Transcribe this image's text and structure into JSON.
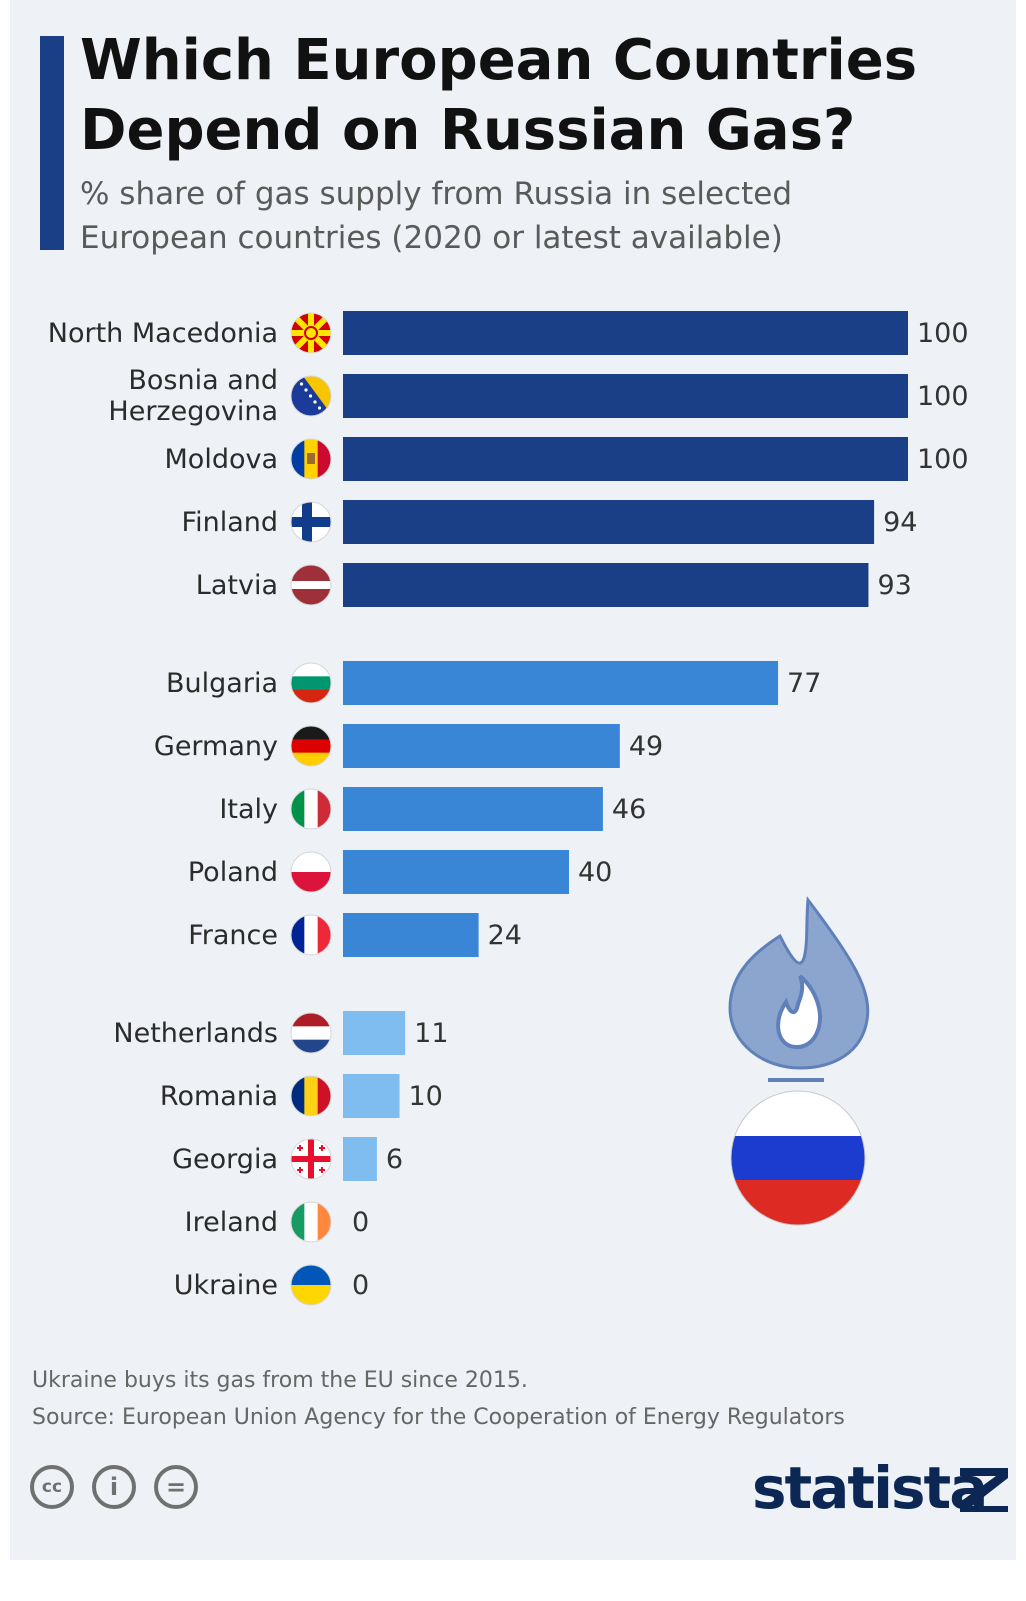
{
  "title": "Which European Countries\nDepend on Russian Gas?",
  "subtitle": "% share of gas supply from Russia in selected European countries (2020 or latest available)",
  "chart_data": {
    "type": "bar",
    "orientation": "horizontal",
    "groups": [
      {
        "color": "#1b3f86",
        "categories": [
          "North Macedonia",
          "Bosnia and Herzegovina",
          "Moldova",
          "Finland",
          "Latvia"
        ],
        "values": [
          100,
          100,
          100,
          94,
          93
        ],
        "value_labels": [
          "100",
          "100",
          "100",
          "94",
          "93"
        ]
      },
      {
        "color": "#3a86d6",
        "categories": [
          "Bulgaria",
          "Germany",
          "Italy",
          "Poland",
          "France"
        ],
        "values": [
          77,
          49,
          46,
          40,
          24
        ],
        "value_labels": [
          "77",
          "49",
          "46",
          "40",
          "24"
        ]
      },
      {
        "color": "#7fbcf0",
        "categories": [
          "Netherlands",
          "Romania",
          "Georgia",
          "Ireland",
          "Ukraine"
        ],
        "values": [
          11,
          10,
          6,
          0,
          0
        ],
        "value_labels": [
          "11",
          "10",
          "6",
          "0",
          "0"
        ]
      }
    ],
    "xlim": [
      0,
      100
    ],
    "grid": false,
    "legend": "none"
  },
  "flags": {
    "North Macedonia": "flag-north-macedonia-icon",
    "Bosnia and Herzegovina": "flag-bosnia-icon",
    "Moldova": "flag-moldova-icon",
    "Finland": "flag-finland-icon",
    "Latvia": "flag-latvia-icon",
    "Bulgaria": "flag-bulgaria-icon",
    "Germany": "flag-germany-icon",
    "Italy": "flag-italy-icon",
    "Poland": "flag-poland-icon",
    "France": "flag-france-icon",
    "Netherlands": "flag-netherlands-icon",
    "Romania": "flag-romania-icon",
    "Georgia": "flag-georgia-icon",
    "Ireland": "flag-ireland-icon",
    "Ukraine": "flag-ukraine-icon"
  },
  "illustration": "gas-flame-russian-flag-icon",
  "notes": {
    "note": "Ukraine buys its gas from the EU since 2015.",
    "source": "Source: European Union Agency for the Cooperation of Energy Regulators"
  },
  "footer": {
    "cc_icons": [
      "creative-commons-icon",
      "attribution-icon",
      "no-derivatives-icon"
    ],
    "cc_text": [
      "cc",
      "=",
      "i"
    ],
    "brand": "statista",
    "brand_icon": "statista-logo-icon"
  }
}
